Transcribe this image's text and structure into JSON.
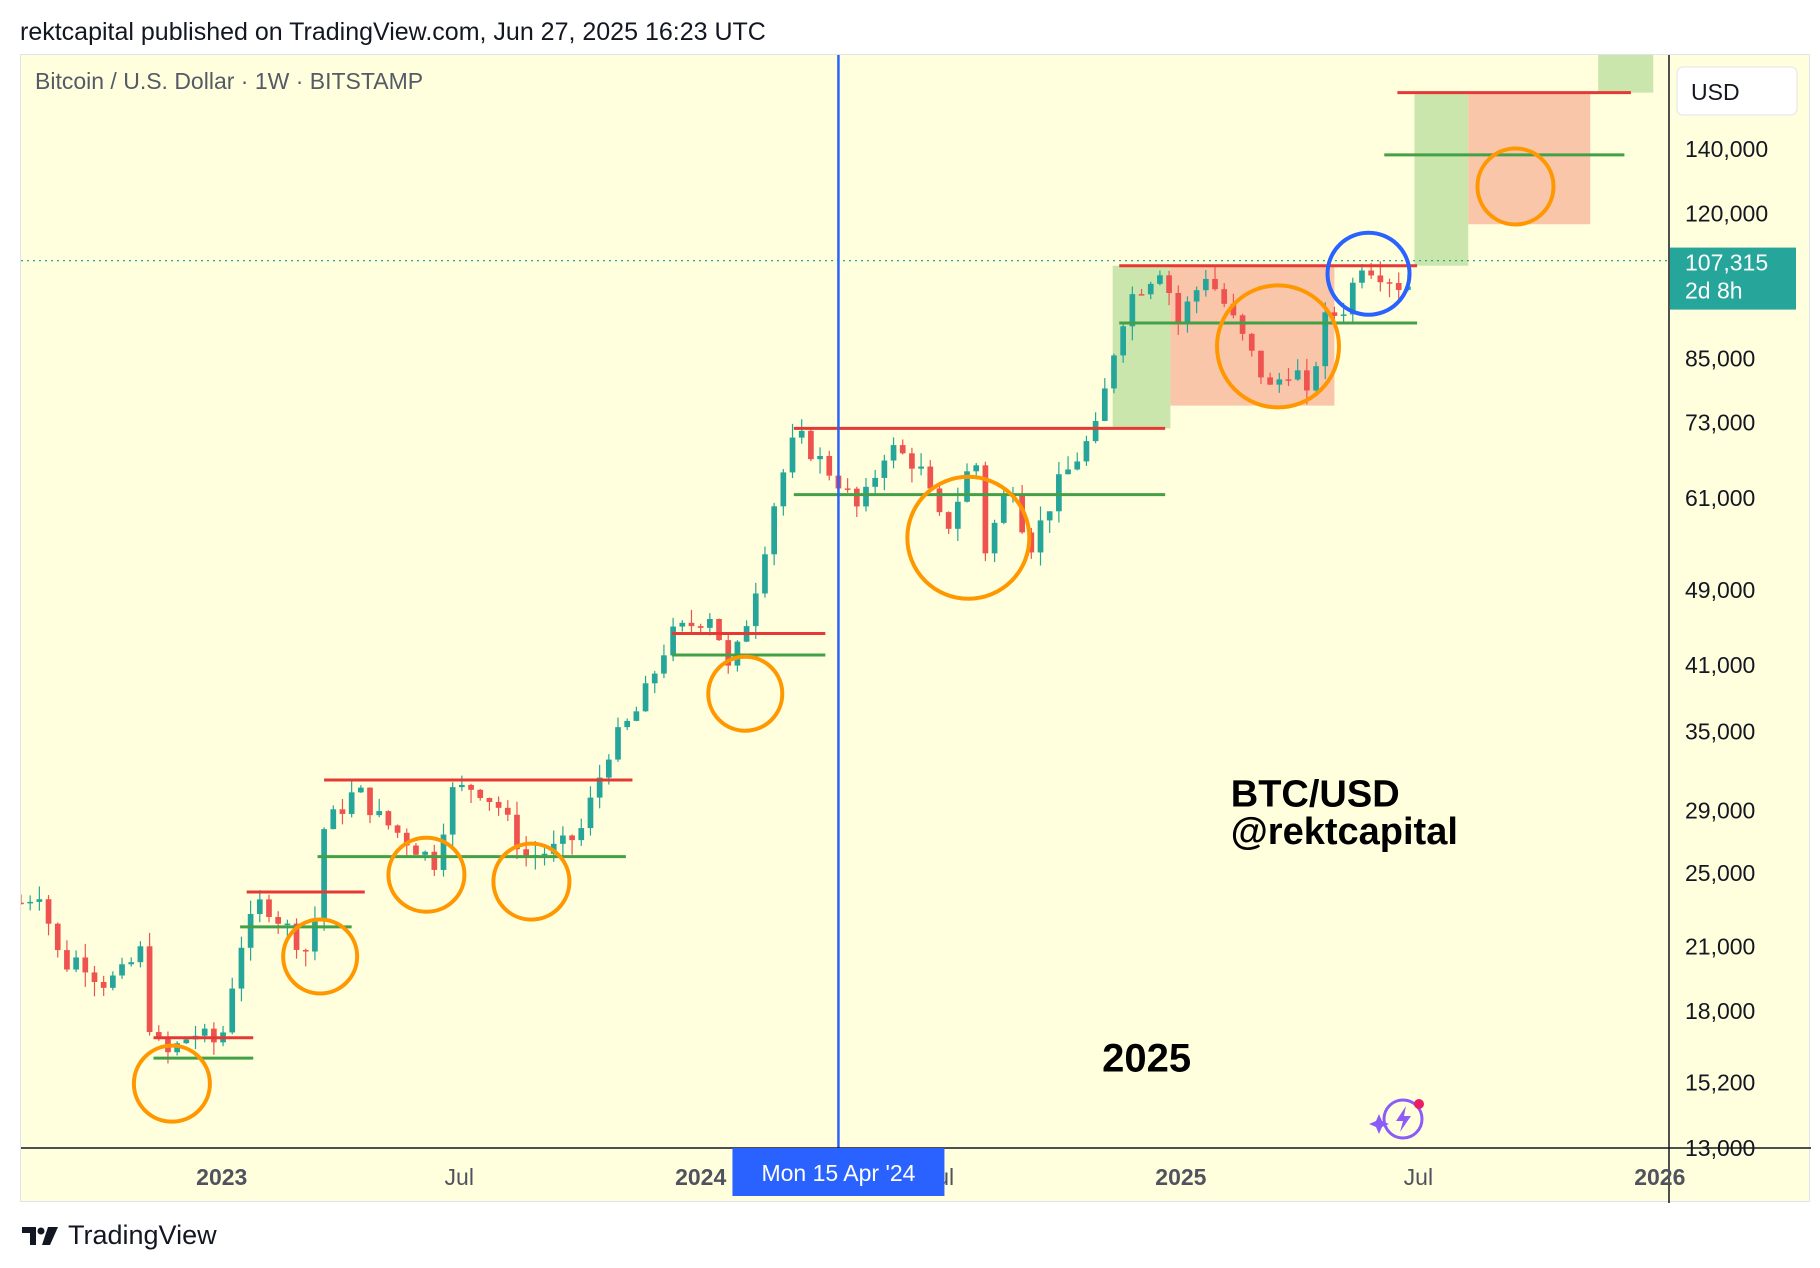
{
  "header": {
    "published": "rektcapital published on TradingView.com, Jun 27, 2025 16:23 UTC"
  },
  "footer": {
    "brand": "TradingView"
  },
  "colors": {
    "background": "#ffffdd",
    "bull": "#26a69a",
    "bear": "#ef5350",
    "resistance": "#e53935",
    "support": "#43a047",
    "circle_orange": "#ff9800",
    "circle_blue": "#2962ff",
    "cursor_line": "#2962ff",
    "price_tag": "#26a69a",
    "green_zone": "#c5e3a6",
    "red_zone": "#f9c0a4"
  },
  "chart_data": {
    "type": "candlestick",
    "title": "Bitcoin / U.S. Dollar · 1W · BITSTAMP",
    "currency": "USD",
    "scale": "log",
    "ylim": [
      13000,
      175000
    ],
    "xlim": [
      "2022-08-01",
      "2026-01-08"
    ],
    "y_ticks": [
      {
        "value": 140000,
        "label": "140,000"
      },
      {
        "value": 120000,
        "label": "120,000"
      },
      {
        "value": 85000,
        "label": "85,000"
      },
      {
        "value": 73000,
        "label": "73,000"
      },
      {
        "value": 61000,
        "label": "61,000"
      },
      {
        "value": 49000,
        "label": "49,000"
      },
      {
        "value": 41000,
        "label": "41,000"
      },
      {
        "value": 35000,
        "label": "35,000"
      },
      {
        "value": 29000,
        "label": "29,000"
      },
      {
        "value": 25000,
        "label": "25,000"
      },
      {
        "value": 21000,
        "label": "21,000"
      },
      {
        "value": 18000,
        "label": "18,000"
      },
      {
        "value": 15200,
        "label": "15,200"
      },
      {
        "value": 13000,
        "label": "13,000"
      }
    ],
    "x_ticks": [
      {
        "date": "2023-01-01",
        "label": "2023",
        "bold": true
      },
      {
        "date": "2023-07-01",
        "label": "Jul",
        "bold": false
      },
      {
        "date": "2024-01-01",
        "label": "2024",
        "bold": true
      },
      {
        "date": "2024-07-01",
        "label": "Jul",
        "bold": false
      },
      {
        "date": "2025-01-01",
        "label": "2025",
        "bold": true
      },
      {
        "date": "2025-07-01",
        "label": "Jul",
        "bold": false
      },
      {
        "date": "2026-01-01",
        "label": "2026",
        "bold": true
      }
    ],
    "last_price": {
      "value": 107315,
      "label": "107,315",
      "countdown": "2d 8h"
    },
    "cursor": {
      "date": "2024-04-15",
      "label": "Mon 15 Apr '24"
    },
    "key_points": [
      {
        "date": "2022-08-01",
        "price": 23300
      },
      {
        "date": "2022-08-15",
        "price": 24000
      },
      {
        "date": "2022-09-01",
        "price": 20000
      },
      {
        "date": "2022-09-15",
        "price": 20500
      },
      {
        "date": "2022-10-01",
        "price": 19300
      },
      {
        "date": "2022-10-15",
        "price": 19500
      },
      {
        "date": "2022-11-01",
        "price": 20800
      },
      {
        "date": "2022-11-08",
        "price": 17000
      },
      {
        "date": "2022-11-20",
        "price": 16200
      },
      {
        "date": "2022-12-10",
        "price": 17100
      },
      {
        "date": "2022-12-31",
        "price": 16600
      },
      {
        "date": "2023-01-14",
        "price": 20900
      },
      {
        "date": "2023-02-01",
        "price": 23500
      },
      {
        "date": "2023-03-10",
        "price": 20500
      },
      {
        "date": "2023-03-20",
        "price": 27800
      },
      {
        "date": "2023-04-14",
        "price": 30500
      },
      {
        "date": "2023-05-01",
        "price": 28500
      },
      {
        "date": "2023-06-15",
        "price": 25500
      },
      {
        "date": "2023-06-22",
        "price": 30200
      },
      {
        "date": "2023-07-14",
        "price": 30800
      },
      {
        "date": "2023-08-01",
        "price": 29200
      },
      {
        "date": "2023-08-20",
        "price": 26000
      },
      {
        "date": "2023-09-15",
        "price": 26500
      },
      {
        "date": "2023-10-01",
        "price": 27500
      },
      {
        "date": "2023-10-23",
        "price": 33500
      },
      {
        "date": "2023-11-15",
        "price": 37000
      },
      {
        "date": "2023-12-08",
        "price": 43800
      },
      {
        "date": "2024-01-10",
        "price": 46500
      },
      {
        "date": "2024-01-23",
        "price": 40000
      },
      {
        "date": "2024-02-09",
        "price": 47500
      },
      {
        "date": "2024-02-28",
        "price": 62000
      },
      {
        "date": "2024-03-14",
        "price": 71000
      },
      {
        "date": "2024-04-15",
        "price": 63500
      },
      {
        "date": "2024-05-01",
        "price": 59000
      },
      {
        "date": "2024-05-22",
        "price": 69000
      },
      {
        "date": "2024-06-15",
        "price": 66000
      },
      {
        "date": "2024-07-05",
        "price": 56000
      },
      {
        "date": "2024-07-28",
        "price": 68000
      },
      {
        "date": "2024-08-05",
        "price": 54000
      },
      {
        "date": "2024-08-25",
        "price": 64000
      },
      {
        "date": "2024-09-07",
        "price": 54000
      },
      {
        "date": "2024-09-30",
        "price": 63000
      },
      {
        "date": "2024-10-29",
        "price": 72000
      },
      {
        "date": "2024-11-12",
        "price": 88000
      },
      {
        "date": "2024-11-22",
        "price": 98000
      },
      {
        "date": "2024-12-17",
        "price": 106000
      },
      {
        "date": "2024-12-30",
        "price": 93000
      },
      {
        "date": "2025-01-20",
        "price": 104000
      },
      {
        "date": "2025-02-01",
        "price": 98000
      },
      {
        "date": "2025-02-25",
        "price": 85000
      },
      {
        "date": "2025-03-10",
        "price": 79000
      },
      {
        "date": "2025-03-28",
        "price": 84000
      },
      {
        "date": "2025-04-07",
        "price": 77000
      },
      {
        "date": "2025-04-21",
        "price": 93000
      },
      {
        "date": "2025-05-05",
        "price": 96000
      },
      {
        "date": "2025-05-19",
        "price": 107000
      },
      {
        "date": "2025-06-05",
        "price": 104000
      },
      {
        "date": "2025-06-22",
        "price": 100000
      },
      {
        "date": "2025-06-27",
        "price": 107315
      }
    ],
    "horizontal_levels": [
      {
        "type": "resistance",
        "price": 16900,
        "from": "2022-11-10",
        "to": "2023-01-25"
      },
      {
        "type": "support",
        "price": 16100,
        "from": "2022-11-10",
        "to": "2023-01-25"
      },
      {
        "type": "resistance",
        "price": 23900,
        "from": "2023-01-20",
        "to": "2023-04-20"
      },
      {
        "type": "support",
        "price": 22000,
        "from": "2023-01-15",
        "to": "2023-04-10"
      },
      {
        "type": "resistance",
        "price": 31200,
        "from": "2023-03-20",
        "to": "2023-11-10"
      },
      {
        "type": "support",
        "price": 26000,
        "from": "2023-03-15",
        "to": "2023-11-05"
      },
      {
        "type": "resistance",
        "price": 44200,
        "from": "2023-12-10",
        "to": "2024-04-05"
      },
      {
        "type": "support",
        "price": 42000,
        "from": "2023-12-10",
        "to": "2024-04-05"
      },
      {
        "type": "resistance",
        "price": 72000,
        "from": "2024-03-12",
        "to": "2024-12-20"
      },
      {
        "type": "support",
        "price": 61500,
        "from": "2024-03-12",
        "to": "2024-12-20"
      },
      {
        "type": "resistance",
        "price": 106000,
        "from": "2024-11-15",
        "to": "2025-06-30"
      },
      {
        "type": "support",
        "price": 92500,
        "from": "2024-11-15",
        "to": "2025-06-30"
      },
      {
        "type": "resistance",
        "price": 160000,
        "from": "2025-06-15",
        "to": "2025-12-10"
      },
      {
        "type": "support",
        "price": 138000,
        "from": "2025-06-05",
        "to": "2025-12-05"
      }
    ],
    "zones": [
      {
        "type": "green",
        "from": "2024-11-10",
        "to": "2024-12-24",
        "low": 72000,
        "high": 106000
      },
      {
        "type": "red",
        "from": "2024-12-24",
        "to": "2025-04-28",
        "low": 76000,
        "high": 106000
      },
      {
        "type": "green",
        "from": "2025-06-28",
        "to": "2025-08-08",
        "low": 106000,
        "high": 160000
      },
      {
        "type": "red",
        "from": "2025-08-08",
        "to": "2025-11-09",
        "low": 117000,
        "high": 160000
      },
      {
        "type": "green",
        "from": "2025-11-15",
        "to": "2025-12-27",
        "low": 160000,
        "high": 175000
      }
    ],
    "circles": [
      {
        "color": "orange",
        "date": "2022-11-24",
        "price": 15150,
        "rx": 38,
        "ry": 38
      },
      {
        "color": "orange",
        "date": "2023-03-17",
        "price": 20500,
        "rx": 37,
        "ry": 37
      },
      {
        "color": "orange",
        "date": "2023-06-06",
        "price": 24900,
        "rx": 38,
        "ry": 37
      },
      {
        "color": "orange",
        "date": "2023-08-25",
        "price": 24500,
        "rx": 38,
        "ry": 38
      },
      {
        "color": "orange",
        "date": "2024-02-04",
        "price": 38300,
        "rx": 37,
        "ry": 37
      },
      {
        "color": "orange",
        "date": "2024-07-23",
        "price": 55500,
        "rx": 61,
        "ry": 61
      },
      {
        "color": "orange",
        "date": "2025-03-16",
        "price": 87500,
        "rx": 61,
        "ry": 61
      },
      {
        "color": "blue",
        "date": "2025-05-24",
        "price": 104000,
        "rx": 41,
        "ry": 41
      },
      {
        "color": "orange",
        "date": "2025-09-13",
        "price": 128000,
        "rx": 38,
        "ry": 38
      }
    ],
    "annotations": [
      {
        "text": "BTC/USD",
        "date": "2025-02-08",
        "price": 29300
      },
      {
        "text": "@rektcapital",
        "date": "2025-02-08",
        "price": 26800
      },
      {
        "text": "2025",
        "date": "2024-11-02",
        "price": 15600
      }
    ]
  }
}
